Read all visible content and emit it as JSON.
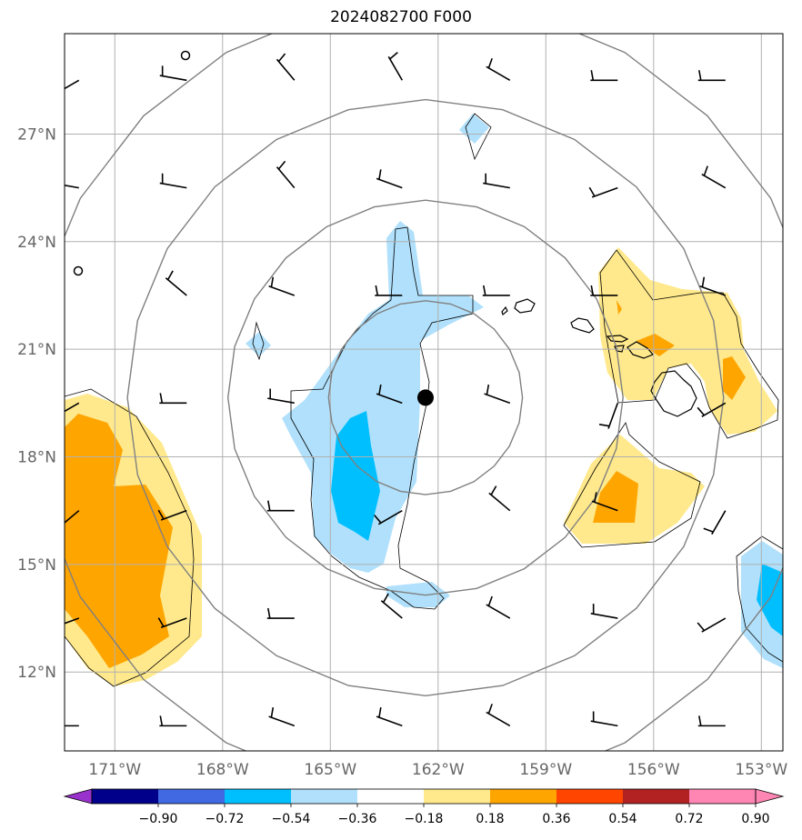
{
  "title": "2024082700 F000",
  "map": {
    "lon_range": [
      -172.4,
      -152.4
    ],
    "lat_range": [
      9.8,
      29.8
    ],
    "lon_ticks": [
      {
        "value": -171,
        "label": "171°W"
      },
      {
        "value": -168,
        "label": "168°W"
      },
      {
        "value": -165,
        "label": "165°W"
      },
      {
        "value": -162,
        "label": "162°W"
      },
      {
        "value": -159,
        "label": "159°W"
      },
      {
        "value": -156,
        "label": "156°W"
      },
      {
        "value": -153,
        "label": "153°W"
      }
    ],
    "lat_ticks": [
      {
        "value": 12,
        "label": "12°N"
      },
      {
        "value": 15,
        "label": "15°N"
      },
      {
        "value": 18,
        "label": "18°N"
      },
      {
        "value": 21,
        "label": "21°N"
      },
      {
        "value": 24,
        "label": "24°N"
      },
      {
        "value": 27,
        "label": "27°N"
      }
    ],
    "storm_center": {
      "lon": -162.35,
      "lat": 19.65
    },
    "range_rings_deg": [
      2.7,
      5.5,
      8.3,
      11.1
    ],
    "grid": true
  },
  "colorbar": {
    "labels": [
      "−0.90",
      "−0.72",
      "−0.54",
      "−0.36",
      "−0.18",
      "0.18",
      "0.36",
      "0.54",
      "0.72",
      "0.90"
    ],
    "colors": [
      "#9932cc",
      "#00008b",
      "#4169e1",
      "#00bfff",
      "#b0e0fb",
      "#ffffff",
      "#ffe98c",
      "#ffa500",
      "#ff4500",
      "#b22222",
      "#ff85b3"
    ]
  },
  "wind_barbs": {
    "lons": [
      -172,
      -169,
      -166,
      -163,
      -160,
      -157,
      -154
    ],
    "lats": [
      28.5,
      25.5,
      22.5,
      19.5,
      16.5,
      13.5,
      10.5
    ],
    "directions_deg": [
      [
        240,
        280,
        320,
        330,
        300,
        270,
        270
      ],
      [
        280,
        280,
        320,
        290,
        280,
        250,
        300
      ],
      [
        null,
        310,
        290,
        270,
        270,
        270,
        290
      ],
      [
        240,
        270,
        280,
        290,
        290,
        200,
        240
      ],
      [
        230,
        250,
        270,
        240,
        310,
        290,
        210
      ],
      [
        250,
        250,
        270,
        310,
        300,
        280,
        240
      ],
      [
        270,
        270,
        290,
        290,
        300,
        280,
        270
      ]
    ]
  }
}
